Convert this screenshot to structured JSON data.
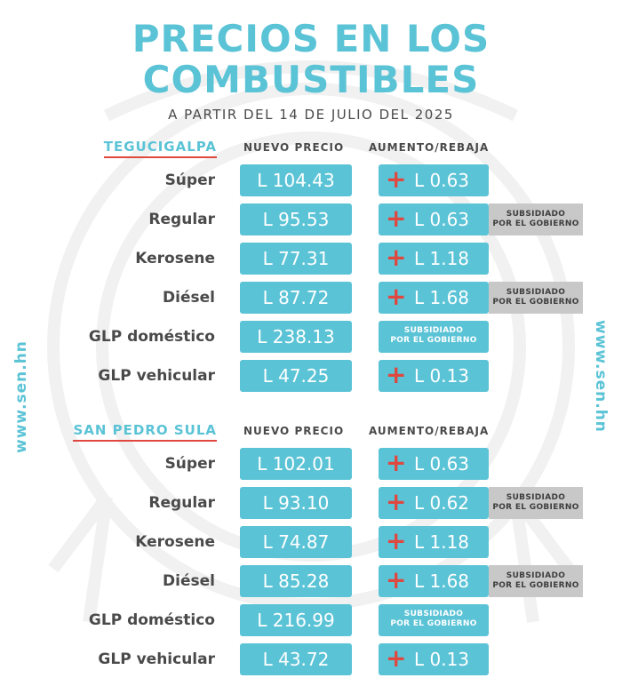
{
  "header": {
    "title_line1": "PRECIOS EN LOS",
    "title_line2": "COMBUSTIBLES",
    "subtitle": "A PARTIR DEL 14 DE JULIO DEL 2025"
  },
  "side_text": "www.sen.hn",
  "columns": {
    "price": "NUEVO PRECIO",
    "change": "AUMENTO/REBAJA"
  },
  "subsidy": {
    "line1": "SUBSIDIADO",
    "line2": "POR EL GOBIERNO"
  },
  "sections": [
    {
      "city": "TEGUCIGALPA",
      "rows": [
        {
          "fuel": "Súper",
          "price": "L 104.43",
          "change": "L 0.63"
        },
        {
          "fuel": "Regular",
          "price": "L 95.53",
          "change": "L 0.63"
        },
        {
          "fuel": "Kerosene",
          "price": "L 77.31",
          "change": "L 1.18"
        },
        {
          "fuel": "Diésel",
          "price": "L 87.72",
          "change": "L 1.68"
        },
        {
          "fuel": "GLP doméstico",
          "price": "L 238.13"
        },
        {
          "fuel": "GLP vehicular",
          "price": "L 47.25",
          "change": "L 0.13"
        }
      ]
    },
    {
      "city": "SAN PEDRO SULA",
      "rows": [
        {
          "fuel": "Súper",
          "price": "L 102.01",
          "change": "L 0.63"
        },
        {
          "fuel": "Regular",
          "price": "L 93.10",
          "change": "L 0.62"
        },
        {
          "fuel": "Kerosene",
          "price": "L 74.87",
          "change": "L 1.18"
        },
        {
          "fuel": "Diésel",
          "price": "L 85.28",
          "change": "L 1.68"
        },
        {
          "fuel": "GLP doméstico",
          "price": "L 216.99"
        },
        {
          "fuel": "GLP vehicular",
          "price": "L 43.72",
          "change": "L 0.13"
        }
      ]
    }
  ],
  "colors": {
    "accent": "#5bc3d6",
    "increase": "#e0473f",
    "text": "#4a4a4a",
    "subsidy_tag": "#c8c8c8"
  }
}
